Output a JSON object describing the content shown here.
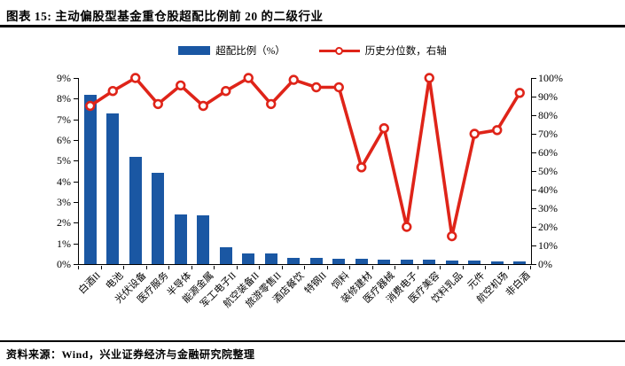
{
  "header": {
    "title": "图表 15: 主动偏股型基金重仓股超配比例前 20 的二级行业"
  },
  "legend": [
    {
      "label": "超配比例（%）",
      "marker": "bar-swatch"
    },
    {
      "label": "历史分位数，右轴",
      "marker": "line-with-circle-marker"
    }
  ],
  "footer": {
    "source": "资料来源：Wind，兴业证券经济与金融研究院整理"
  },
  "colors": {
    "bar": "#1a57a3",
    "line": "#df2419",
    "marker_fill": "#ffffff",
    "axis": "#000000"
  },
  "chart_data": {
    "type": "bar",
    "subtype": "bar-and-line-dual-axis",
    "title": "主动偏股型基金重仓股超配比例前 20 的二级行业",
    "categories": [
      "白酒II",
      "电池",
      "光伏设备",
      "医疗服务",
      "半导体",
      "能源金属",
      "军工电子II",
      "航空装备II",
      "旅游零售II",
      "酒店餐饮",
      "特钢II",
      "饲料",
      "装修建材",
      "医疗器械",
      "消费电子",
      "医疗美容",
      "饮料乳品",
      "元件",
      "航空机场",
      "非白酒"
    ],
    "series": [
      {
        "name": "超配比例（%）",
        "type": "bar",
        "axis": "left",
        "values": [
          8.2,
          7.3,
          5.2,
          4.4,
          2.4,
          2.35,
          0.8,
          0.5,
          0.5,
          0.3,
          0.3,
          0.27,
          0.27,
          0.2,
          0.2,
          0.2,
          0.17,
          0.17,
          0.15,
          0.13
        ]
      },
      {
        "name": "历史分位数，右轴",
        "type": "line",
        "axis": "right",
        "values": [
          85,
          93,
          100,
          86,
          96,
          85,
          93,
          100,
          86,
          99,
          95,
          95,
          52,
          73,
          20,
          100,
          15,
          70,
          72,
          92
        ]
      }
    ],
    "left_axis": {
      "min": 0,
      "max": 9,
      "step": 1,
      "ticks": [
        "9%",
        "8%",
        "7%",
        "6%",
        "5%",
        "4%",
        "3%",
        "2%",
        "1%",
        "0%"
      ]
    },
    "right_axis": {
      "min": 0,
      "max": 100,
      "step": 10,
      "ticks": [
        "100%",
        "90%",
        "80%",
        "70%",
        "60%",
        "50%",
        "40%",
        "30%",
        "20%",
        "10%",
        "0%"
      ]
    },
    "grid": false,
    "legend_position": "top-center"
  }
}
